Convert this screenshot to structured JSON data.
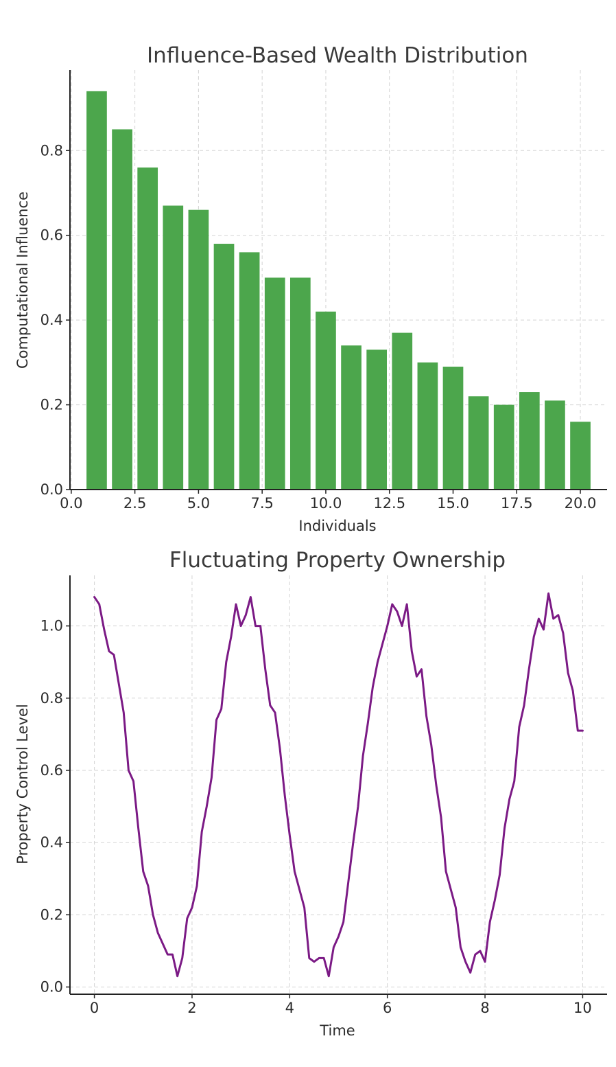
{
  "chart_data": [
    {
      "type": "bar",
      "title": "Influence-Based Wealth Distribution",
      "xlabel": "Individuals",
      "ylabel": "Computational Influence",
      "xlim": [
        -0.05,
        21.05
      ],
      "ylim": [
        0,
        0.99
      ],
      "xticks": [
        0.0,
        2.5,
        5.0,
        7.5,
        10.0,
        12.5,
        15.0,
        17.5,
        20.0
      ],
      "xtick_labels": [
        "0.0",
        "2.5",
        "5.0",
        "7.5",
        "10.0",
        "12.5",
        "15.0",
        "17.5",
        "20.0"
      ],
      "yticks": [
        0.0,
        0.2,
        0.4,
        0.6,
        0.8
      ],
      "ytick_labels": [
        "0.0",
        "0.2",
        "0.4",
        "0.6",
        "0.8"
      ],
      "grid": true,
      "color": "#4ca64c",
      "categories": [
        1,
        2,
        3,
        4,
        5,
        6,
        7,
        8,
        9,
        10,
        11,
        12,
        13,
        14,
        15,
        16,
        17,
        18,
        19,
        20
      ],
      "values": [
        0.94,
        0.85,
        0.76,
        0.67,
        0.66,
        0.58,
        0.56,
        0.5,
        0.5,
        0.42,
        0.34,
        0.33,
        0.37,
        0.3,
        0.29,
        0.22,
        0.2,
        0.23,
        0.21,
        0.16
      ]
    },
    {
      "type": "line",
      "title": "Fluctuating Property Ownership",
      "xlabel": "Time",
      "ylabel": "Property Control Level",
      "xlim": [
        -0.5,
        10.5
      ],
      "ylim": [
        -0.02,
        1.14
      ],
      "xticks": [
        0,
        2,
        4,
        6,
        8,
        10
      ],
      "xtick_labels": [
        "0",
        "2",
        "4",
        "6",
        "8",
        "10"
      ],
      "yticks": [
        0.0,
        0.2,
        0.4,
        0.6,
        0.8,
        1.0
      ],
      "ytick_labels": [
        "0.0",
        "0.2",
        "0.4",
        "0.6",
        "0.8",
        "1.0"
      ],
      "grid": true,
      "color": "#7b1a85",
      "x": [
        0.0,
        0.1,
        0.2,
        0.3,
        0.4,
        0.5,
        0.6,
        0.7,
        0.8,
        0.9,
        1.0,
        1.1,
        1.2,
        1.3,
        1.4,
        1.5,
        1.6,
        1.7,
        1.8,
        1.9,
        2.0,
        2.1,
        2.2,
        2.3,
        2.4,
        2.5,
        2.6,
        2.7,
        2.8,
        2.9,
        3.0,
        3.1,
        3.2,
        3.3,
        3.4,
        3.5,
        3.6,
        3.7,
        3.8,
        3.9,
        4.0,
        4.1,
        4.2,
        4.3,
        4.4,
        4.5,
        4.6,
        4.7,
        4.8,
        4.9,
        5.0,
        5.1,
        5.2,
        5.3,
        5.4,
        5.5,
        5.6,
        5.7,
        5.8,
        5.9,
        6.0,
        6.1,
        6.2,
        6.3,
        6.4,
        6.5,
        6.6,
        6.7,
        6.8,
        6.9,
        7.0,
        7.1,
        7.2,
        7.3,
        7.4,
        7.5,
        7.6,
        7.7,
        7.8,
        7.9,
        8.0,
        8.1,
        8.2,
        8.3,
        8.4,
        8.5,
        8.6,
        8.7,
        8.8,
        8.9,
        9.0,
        9.1,
        9.2,
        9.3,
        9.4,
        9.5,
        9.6,
        9.7,
        9.8,
        9.9,
        10.0
      ],
      "y": [
        1.08,
        1.06,
        0.99,
        0.93,
        0.92,
        0.84,
        0.76,
        0.6,
        0.57,
        0.44,
        0.32,
        0.28,
        0.2,
        0.15,
        0.12,
        0.09,
        0.09,
        0.03,
        0.08,
        0.19,
        0.22,
        0.28,
        0.43,
        0.5,
        0.58,
        0.74,
        0.77,
        0.9,
        0.97,
        1.06,
        1.0,
        1.03,
        1.08,
        1.0,
        1.0,
        0.88,
        0.78,
        0.76,
        0.66,
        0.53,
        0.42,
        0.32,
        0.27,
        0.22,
        0.08,
        0.07,
        0.08,
        0.08,
        0.03,
        0.11,
        0.14,
        0.18,
        0.29,
        0.4,
        0.5,
        0.64,
        0.73,
        0.83,
        0.9,
        0.95,
        1.0,
        1.06,
        1.04,
        1.0,
        1.06,
        0.93,
        0.86,
        0.88,
        0.75,
        0.67,
        0.56,
        0.47,
        0.32,
        0.27,
        0.22,
        0.11,
        0.07,
        0.04,
        0.09,
        0.1,
        0.07,
        0.18,
        0.24,
        0.31,
        0.44,
        0.52,
        0.57,
        0.72,
        0.78,
        0.88,
        0.97,
        1.02,
        0.99,
        1.09,
        1.02,
        1.03,
        0.98,
        0.87,
        0.82,
        0.71,
        0.71
      ]
    }
  ]
}
